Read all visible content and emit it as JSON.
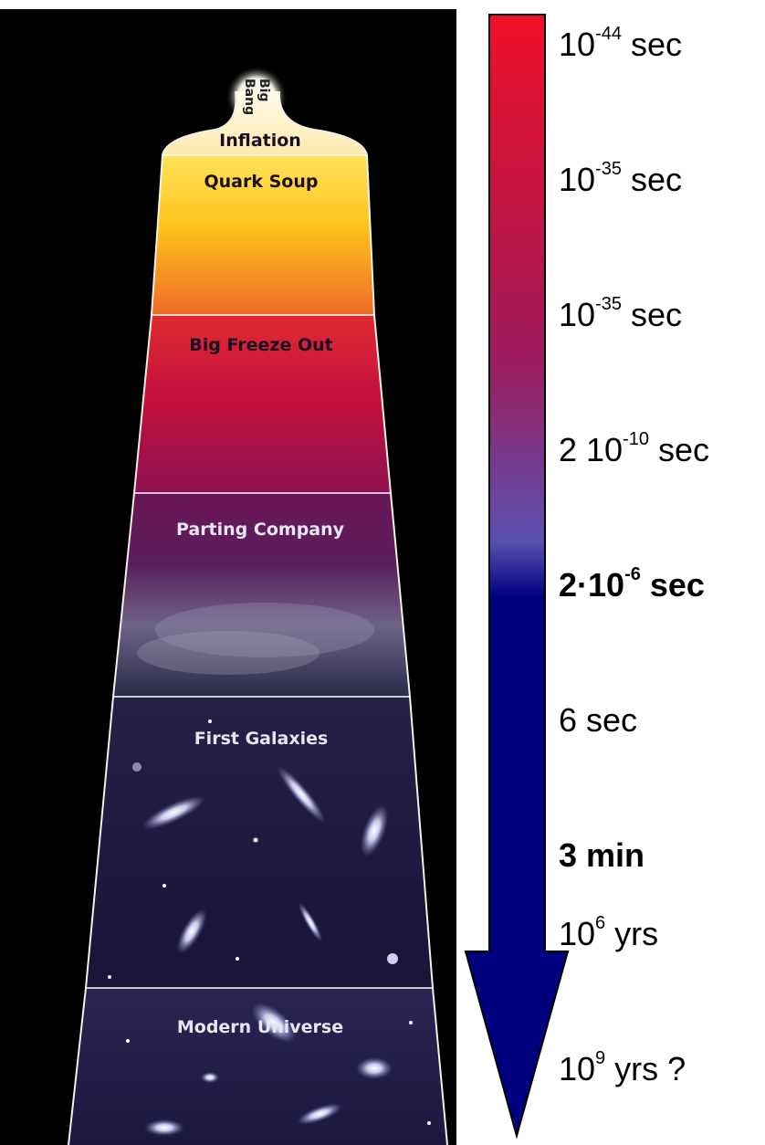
{
  "eras": [
    {
      "label": "Inflation"
    },
    {
      "label": "Quark Soup"
    },
    {
      "label": "Big Freeze Out"
    },
    {
      "label": "Parting Company"
    },
    {
      "label": "First Galaxies"
    },
    {
      "label": "Modern Universe"
    }
  ],
  "big_bang": {
    "line1": "Big",
    "line2": "Bang"
  },
  "timeline": [
    {
      "base": "10",
      "exp": "-44",
      "unit": " sec",
      "bold": false
    },
    {
      "base": "10",
      "exp": "-35",
      "unit": " sec",
      "bold": false
    },
    {
      "base": "10",
      "exp": "-35",
      "unit": " sec",
      "bold": false
    },
    {
      "base": "2 10",
      "exp": "-10",
      "unit": " sec",
      "bold": false
    },
    {
      "base": "2·10",
      "exp": "-6",
      "unit": " sec",
      "bold": true
    },
    {
      "base": "6 sec",
      "exp": "",
      "unit": "",
      "bold": false
    },
    {
      "base": "3 min",
      "exp": "",
      "unit": "",
      "bold": true
    },
    {
      "base": "10",
      "exp": "6",
      "unit": " yrs",
      "bold": false
    },
    {
      "base": "10",
      "exp": "9",
      "unit": " yrs ?",
      "bold": false
    }
  ],
  "colors": {
    "arrow_top": "#e8102a",
    "arrow_mid": "#7a3aa0",
    "arrow_bottom": "#00007f",
    "inflation": "#fff4d8",
    "quark_soup": "#ffc020",
    "big_freeze": "#c8103a",
    "parting": "#5a1a5a",
    "galaxies": "#1e1640"
  }
}
